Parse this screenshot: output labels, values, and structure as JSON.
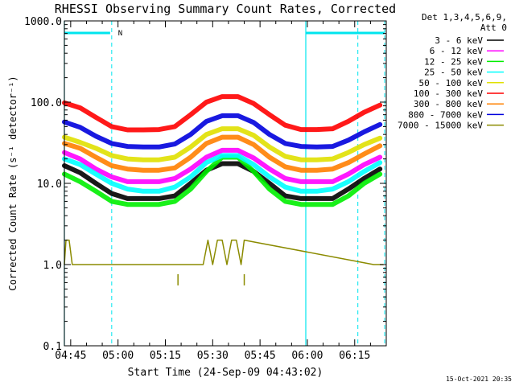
{
  "chart_data": {
    "type": "line",
    "title": "RHESSI Observing Summary Count Rates, Corrected",
    "xlabel": "Start Time (24-Sep-09 04:43:02)",
    "ylabel": "Corrected Count Rate (s⁻¹ detector⁻¹)",
    "y_scale": "log",
    "ylim": [
      0.1,
      1000
    ],
    "x_unit": "minutes after 04:43:02",
    "xlim": [
      0,
      102
    ],
    "x_tick_labels": [
      {
        "t": 2,
        "label": "04:45"
      },
      {
        "t": 17,
        "label": "05:00"
      },
      {
        "t": 32,
        "label": "05:15"
      },
      {
        "t": 47,
        "label": "05:30"
      },
      {
        "t": 62,
        "label": "05:45"
      },
      {
        "t": 77,
        "label": "06:00"
      },
      {
        "t": 92,
        "label": "06:15"
      }
    ],
    "y_tick_labels": [
      {
        "v": 1000,
        "label": "1000.0"
      },
      {
        "v": 100,
        "label": "100.0"
      },
      {
        "v": 10,
        "label": "10.0"
      },
      {
        "v": 1,
        "label": "1.0"
      },
      {
        "v": 0.1,
        "label": "0.1"
      }
    ],
    "legend_header": [
      "Det 1,3,4,5,6,9,",
      "Att 0"
    ],
    "series": [
      {
        "name": "3 - 6 keV",
        "color": "#000000",
        "x": [
          0,
          5,
          10,
          15,
          20,
          25,
          30,
          35,
          40,
          45,
          50,
          55,
          60,
          65,
          70,
          75,
          80,
          85,
          90,
          95,
          100
        ],
        "values": [
          16.5,
          13.5,
          10.0,
          7.5,
          6.5,
          6.5,
          6.5,
          7.0,
          10.0,
          14.5,
          17.5,
          17.5,
          14.0,
          10.0,
          7.0,
          6.5,
          6.5,
          6.5,
          8.5,
          11.5,
          15.0
        ]
      },
      {
        "name": "6 - 12 keV",
        "color": "#ff00ff",
        "x": [
          0,
          5,
          10,
          15,
          20,
          25,
          30,
          35,
          40,
          45,
          50,
          55,
          60,
          65,
          70,
          75,
          80,
          85,
          90,
          95,
          100
        ],
        "values": [
          24,
          20,
          15,
          12,
          10.5,
          10.5,
          10.5,
          11.5,
          15,
          21,
          25.5,
          25.5,
          20.5,
          15,
          11.5,
          10.5,
          10.5,
          10.5,
          13,
          17,
          21
        ]
      },
      {
        "name": "12 - 25 keV",
        "color": "#00ee00",
        "x": [
          0,
          5,
          10,
          15,
          20,
          25,
          30,
          35,
          40,
          45,
          50,
          55,
          60,
          65,
          70,
          75,
          80,
          85,
          90,
          95,
          100
        ],
        "values": [
          13,
          10.5,
          8,
          6,
          5.5,
          5.5,
          5.5,
          6,
          8.5,
          14,
          21,
          21,
          14,
          8.5,
          6,
          5.5,
          5.5,
          5.5,
          7,
          10,
          13
        ]
      },
      {
        "name": "25 - 50 keV",
        "color": "#00ffff",
        "x": [
          0,
          5,
          10,
          15,
          20,
          25,
          30,
          35,
          40,
          45,
          50,
          55,
          60,
          65,
          70,
          75,
          80,
          85,
          90,
          95,
          100
        ],
        "values": [
          20,
          17,
          13,
          10,
          8.5,
          8,
          8,
          9,
          12,
          18,
          22,
          22,
          17,
          12,
          9,
          8,
          8,
          8.5,
          10.5,
          14,
          18
        ]
      },
      {
        "name": "50 - 100 keV",
        "color": "#e0e000",
        "x": [
          0,
          5,
          10,
          15,
          20,
          25,
          30,
          35,
          40,
          45,
          50,
          55,
          60,
          65,
          70,
          75,
          80,
          85,
          90,
          95,
          100
        ],
        "values": [
          37,
          32,
          27,
          22,
          20,
          19.5,
          19.5,
          21,
          28,
          40,
          47,
          47,
          39,
          28,
          21.5,
          19.5,
          19.5,
          20,
          24,
          30,
          36
        ]
      },
      {
        "name": "100 - 300 keV",
        "color": "#ff0000",
        "x": [
          0,
          5,
          10,
          15,
          20,
          25,
          30,
          35,
          40,
          45,
          50,
          55,
          60,
          65,
          70,
          75,
          80,
          85,
          90,
          95,
          100
        ],
        "values": [
          98,
          85,
          65,
          50,
          45.5,
          45.5,
          46,
          50,
          70,
          100,
          117,
          117,
          96,
          70,
          52,
          46,
          46,
          47,
          58,
          75,
          92
        ]
      },
      {
        "name": "300 - 800 keV",
        "color": "#ff8000",
        "x": [
          0,
          5,
          10,
          15,
          20,
          25,
          30,
          35,
          40,
          45,
          50,
          55,
          60,
          65,
          70,
          75,
          80,
          85,
          90,
          95,
          100
        ],
        "values": [
          31,
          27,
          21,
          16.5,
          15,
          14.5,
          14.5,
          15.5,
          21,
          31,
          37,
          37,
          30,
          21,
          16,
          14.5,
          14.5,
          15,
          18,
          23,
          29
        ]
      },
      {
        "name": "800 - 7000 keV",
        "color": "#0000dd",
        "x": [
          0,
          5,
          10,
          15,
          20,
          25,
          30,
          35,
          40,
          45,
          50,
          55,
          60,
          65,
          70,
          75,
          80,
          85,
          90,
          95,
          100
        ],
        "values": [
          57,
          49,
          38,
          31,
          28.5,
          28,
          28,
          30.5,
          40,
          58,
          68,
          68,
          56,
          40,
          31,
          28.5,
          28,
          28.5,
          34,
          43,
          53
        ]
      },
      {
        "name": "7000 - 15000 keV",
        "color": "#8b8b00",
        "x": [
          0,
          0.5,
          1.5,
          2.5,
          44,
          45.5,
          47,
          48.5,
          50,
          51.5,
          53,
          54.5,
          56,
          57,
          98,
          99,
          100,
          101
        ],
        "values": [
          1.0,
          2.0,
          2.0,
          1.0,
          1.0,
          2.0,
          1.0,
          2.0,
          2.0,
          1.0,
          2.0,
          2.0,
          1.0,
          2.0,
          1.0,
          1.0,
          1.0,
          1.0
        ]
      }
    ],
    "cyan_vlines_x": [
      0,
      76.5
    ],
    "dashed_vlines_x": [
      15,
      93
    ],
    "dashed_vlines_late_x": [
      101.5
    ],
    "night_bars": [
      [
        0,
        14.5
      ],
      [
        76.5,
        101.5
      ]
    ],
    "flag_label": "N",
    "flag_label_x": 16,
    "att_marks_x": [
      36,
      57
    ],
    "att_mark_value": 0.65,
    "footer_timestamp": "15-Oct-2021 20:35"
  }
}
